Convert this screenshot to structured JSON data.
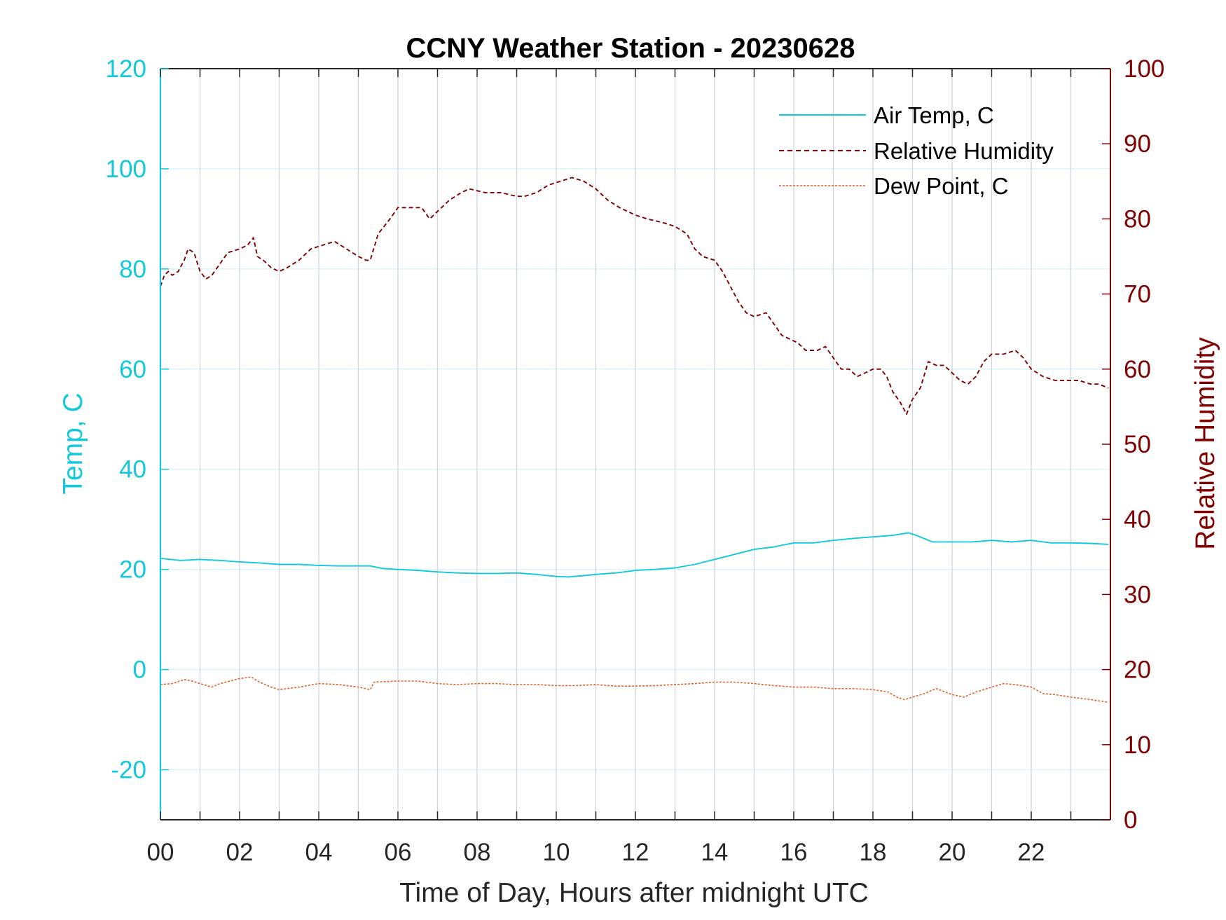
{
  "chart_data": {
    "type": "line",
    "title": "CCNY Weather Station - 20230628",
    "xlabel": "Time of Day, Hours after midnight UTC",
    "ylabel_left": "Temp, C",
    "ylabel_right": "Relative Humidity",
    "xlim": [
      0,
      24
    ],
    "ylim_left": [
      -30,
      120
    ],
    "ylim_right": [
      0,
      100
    ],
    "x_ticks": [
      0,
      2,
      4,
      6,
      8,
      10,
      12,
      14,
      16,
      18,
      20,
      22
    ],
    "x_tick_labels": [
      "00",
      "02",
      "04",
      "06",
      "08",
      "10",
      "12",
      "14",
      "16",
      "18",
      "20",
      "22"
    ],
    "y_ticks_left": [
      -20,
      0,
      20,
      40,
      60,
      80,
      100,
      120
    ],
    "y_tick_labels_left": [
      "-20",
      "0",
      "20",
      "40",
      "60",
      "80",
      "100",
      "120"
    ],
    "y_ticks_right": [
      0,
      10,
      20,
      30,
      40,
      50,
      60,
      70,
      80,
      90,
      100
    ],
    "y_tick_labels_right": [
      "0",
      "10",
      "20",
      "30",
      "40",
      "50",
      "60",
      "70",
      "80",
      "90",
      "100"
    ],
    "grid": "vertical-every-hour-and-horizontal-at-left-ticks",
    "legend_position": "top-right",
    "colors": {
      "air_temp": "#12c8dc",
      "relative_humidity": "#800000",
      "dew_point": "#e2642a",
      "grid_vertical": "#d0d5db",
      "grid_horizontal": "#d8f4f8"
    },
    "series": [
      {
        "name": "Air Temp, C",
        "axis": "left",
        "style": "solid",
        "x": [
          0,
          0.5,
          1,
          1.5,
          2,
          2.5,
          3,
          3.5,
          4,
          4.5,
          5,
          5.3,
          5.6,
          6,
          6.5,
          7,
          7.5,
          8,
          8.5,
          9,
          9.5,
          10,
          10.3,
          10.6,
          11,
          11.5,
          12,
          12.5,
          13,
          13.5,
          14,
          14.5,
          15,
          15.5,
          16,
          16.5,
          17,
          17.5,
          18,
          18.5,
          18.9,
          19.1,
          19.5,
          20,
          20.5,
          21,
          21.5,
          22,
          22.5,
          23,
          23.5,
          23.95
        ],
        "values": [
          22.2,
          21.8,
          22.0,
          21.8,
          21.5,
          21.3,
          21.0,
          21.0,
          20.8,
          20.7,
          20.7,
          20.7,
          20.2,
          20.0,
          19.8,
          19.5,
          19.3,
          19.2,
          19.2,
          19.3,
          19.0,
          18.6,
          18.5,
          18.7,
          19.0,
          19.3,
          19.8,
          20.0,
          20.3,
          21.0,
          22.0,
          23.0,
          24.0,
          24.5,
          25.3,
          25.3,
          25.8,
          26.2,
          26.5,
          26.8,
          27.3,
          26.8,
          25.5,
          25.5,
          25.5,
          25.8,
          25.5,
          25.8,
          25.3,
          25.3,
          25.2,
          25.0
        ]
      },
      {
        "name": "Relative Humidity",
        "axis": "right",
        "style": "dashed",
        "x": [
          0,
          0.1,
          0.2,
          0.3,
          0.45,
          0.6,
          0.7,
          0.85,
          1.0,
          1.15,
          1.3,
          1.5,
          1.7,
          2.0,
          2.2,
          2.35,
          2.45,
          2.6,
          2.8,
          3.0,
          3.2,
          3.5,
          3.8,
          4.1,
          4.4,
          4.7,
          5.0,
          5.2,
          5.3,
          5.5,
          5.8,
          6.0,
          6.3,
          6.6,
          6.8,
          7.0,
          7.3,
          7.6,
          7.8,
          8.2,
          8.6,
          9.0,
          9.2,
          9.5,
          9.8,
          10.1,
          10.4,
          10.7,
          11.0,
          11.3,
          11.6,
          12.0,
          12.3,
          12.7,
          13.0,
          13.3,
          13.5,
          13.7,
          14.0,
          14.2,
          14.4,
          14.6,
          14.8,
          15.0,
          15.3,
          15.5,
          15.7,
          15.9,
          16.1,
          16.3,
          16.6,
          16.8,
          17.0,
          17.2,
          17.4,
          17.6,
          17.8,
          18.0,
          18.2,
          18.35,
          18.5,
          18.7,
          18.85,
          19.0,
          19.2,
          19.4,
          19.6,
          19.8,
          20.0,
          20.2,
          20.4,
          20.6,
          20.8,
          21.0,
          21.3,
          21.6,
          21.8,
          22.0,
          22.3,
          22.6,
          22.9,
          23.2,
          23.5,
          23.7,
          23.95
        ],
        "values": [
          71,
          72.5,
          73,
          72.5,
          73,
          74.5,
          76,
          75.5,
          73,
          72,
          72.5,
          74,
          75.5,
          76,
          76.5,
          77.5,
          75,
          74.5,
          73.5,
          73,
          73.5,
          74.5,
          76,
          76.5,
          77,
          76,
          75,
          74.5,
          74.5,
          78,
          80,
          81.5,
          81.5,
          81.5,
          80,
          81,
          82.5,
          83.5,
          84,
          83.5,
          83.5,
          83,
          83,
          83.5,
          84.5,
          85,
          85.5,
          85,
          84,
          82.5,
          81.5,
          80.5,
          80,
          79.5,
          79,
          78,
          76,
          75,
          74.5,
          73,
          71,
          69,
          67.5,
          67,
          67.5,
          66,
          64.5,
          64,
          63.5,
          62.5,
          62.5,
          63,
          61.5,
          60,
          60,
          59,
          59.5,
          60,
          60,
          59,
          57,
          55.5,
          54,
          56,
          57.5,
          61,
          60.5,
          60.5,
          59.5,
          58.5,
          58,
          59,
          61,
          62,
          62,
          62.5,
          61.5,
          60,
          59,
          58.5,
          58.5,
          58.5,
          58,
          58,
          57.5
        ]
      },
      {
        "name": "Dew Point, C",
        "axis": "left",
        "style": "dotted",
        "x": [
          0,
          0.3,
          0.6,
          0.8,
          1.0,
          1.3,
          1.5,
          1.8,
          2.0,
          2.3,
          2.5,
          2.8,
          3.0,
          3.5,
          4.0,
          4.5,
          5.0,
          5.3,
          5.4,
          6.0,
          6.5,
          7.0,
          7.5,
          8.0,
          8.5,
          9.0,
          9.5,
          10.0,
          10.5,
          11.0,
          11.5,
          12.0,
          12.5,
          13.0,
          13.5,
          14.0,
          14.5,
          15.0,
          15.5,
          16.0,
          16.5,
          17.0,
          17.5,
          18.0,
          18.4,
          18.6,
          18.8,
          19.0,
          19.3,
          19.6,
          20.0,
          20.3,
          20.6,
          21.0,
          21.3,
          21.6,
          22.0,
          22.3,
          22.6,
          23.0,
          23.5,
          23.95
        ],
        "values": [
          -3,
          -2.8,
          -2,
          -2.3,
          -2.8,
          -3.5,
          -2.8,
          -2.2,
          -1.8,
          -1.5,
          -2.5,
          -3.5,
          -4,
          -3.5,
          -2.8,
          -3,
          -3.5,
          -4,
          -2.5,
          -2.3,
          -2.3,
          -2.8,
          -3,
          -2.8,
          -2.8,
          -3,
          -3,
          -3.2,
          -3.2,
          -3,
          -3.3,
          -3.3,
          -3.2,
          -3,
          -2.8,
          -2.5,
          -2.5,
          -2.8,
          -3.2,
          -3.5,
          -3.5,
          -3.8,
          -3.8,
          -4,
          -4.5,
          -5.5,
          -6,
          -5.5,
          -4.8,
          -3.8,
          -5,
          -5.5,
          -4.5,
          -3.5,
          -2.8,
          -3,
          -3.5,
          -4.8,
          -5,
          -5.5,
          -6,
          -6.5
        ]
      }
    ]
  }
}
